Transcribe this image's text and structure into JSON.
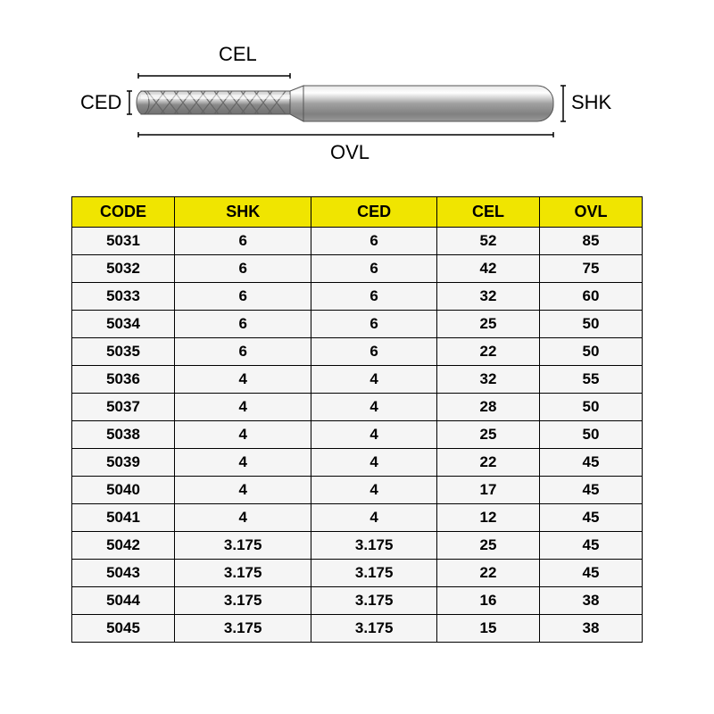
{
  "diagram": {
    "labels": {
      "cel": "CEL",
      "ced": "CED",
      "shk": "SHK",
      "ovl": "OVL"
    },
    "colors": {
      "shank_fill": "#b8b8b8",
      "shank_stroke": "#555555",
      "cutter_fill": "#a8a8a8",
      "cutter_stroke": "#666666",
      "highlight": "#ffffff",
      "shadow": "#808080",
      "dimension_line": "#000000",
      "text": "#000000"
    },
    "label_fontsize": 22
  },
  "table": {
    "header_bg": "#f0e500",
    "cell_bg": "#f5f5f5",
    "border_color": "#000000",
    "header_fontsize": 18,
    "cell_fontsize": 17,
    "columns": [
      {
        "key": "code",
        "label": "CODE",
        "width_pct": 18
      },
      {
        "key": "shk",
        "label": "SHK",
        "width_pct": 24
      },
      {
        "key": "ced",
        "label": "CED",
        "width_pct": 22
      },
      {
        "key": "cel",
        "label": "CEL",
        "width_pct": 18
      },
      {
        "key": "ovl",
        "label": "OVL",
        "width_pct": 18
      }
    ],
    "rows": [
      {
        "code": "5031",
        "shk": "6",
        "ced": "6",
        "cel": "52",
        "ovl": "85"
      },
      {
        "code": "5032",
        "shk": "6",
        "ced": "6",
        "cel": "42",
        "ovl": "75"
      },
      {
        "code": "5033",
        "shk": "6",
        "ced": "6",
        "cel": "32",
        "ovl": "60"
      },
      {
        "code": "5034",
        "shk": "6",
        "ced": "6",
        "cel": "25",
        "ovl": "50"
      },
      {
        "code": "5035",
        "shk": "6",
        "ced": "6",
        "cel": "22",
        "ovl": "50"
      },
      {
        "code": "5036",
        "shk": "4",
        "ced": "4",
        "cel": "32",
        "ovl": "55"
      },
      {
        "code": "5037",
        "shk": "4",
        "ced": "4",
        "cel": "28",
        "ovl": "50"
      },
      {
        "code": "5038",
        "shk": "4",
        "ced": "4",
        "cel": "25",
        "ovl": "50"
      },
      {
        "code": "5039",
        "shk": "4",
        "ced": "4",
        "cel": "22",
        "ovl": "45"
      },
      {
        "code": "5040",
        "shk": "4",
        "ced": "4",
        "cel": "17",
        "ovl": "45"
      },
      {
        "code": "5041",
        "shk": "4",
        "ced": "4",
        "cel": "12",
        "ovl": "45"
      },
      {
        "code": "5042",
        "shk": "3.175",
        "ced": "3.175",
        "cel": "25",
        "ovl": "45"
      },
      {
        "code": "5043",
        "shk": "3.175",
        "ced": "3.175",
        "cel": "22",
        "ovl": "45"
      },
      {
        "code": "5044",
        "shk": "3.175",
        "ced": "3.175",
        "cel": "16",
        "ovl": "38"
      },
      {
        "code": "5045",
        "shk": "3.175",
        "ced": "3.175",
        "cel": "15",
        "ovl": "38"
      }
    ]
  }
}
